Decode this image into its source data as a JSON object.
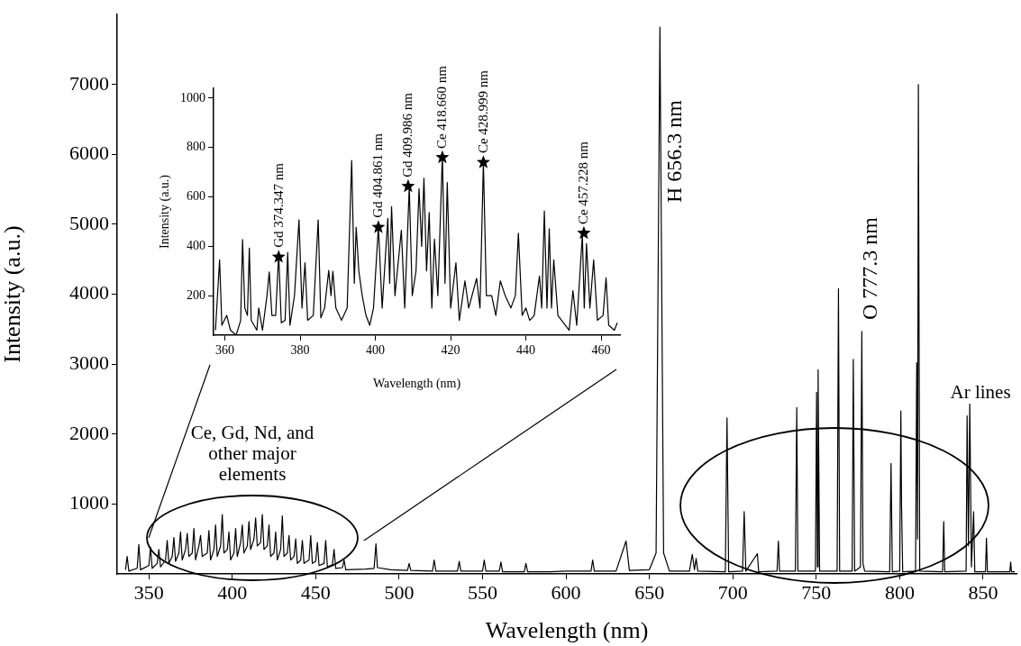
{
  "chart_data": [
    {
      "type": "line",
      "xlabel": "Wavelength (nm)",
      "ylabel": "Intensity (a.u.)",
      "color": "#000000",
      "xlim": [
        331,
        870
      ],
      "xticks": [
        350,
        400,
        450,
        500,
        550,
        600,
        650,
        700,
        750,
        800,
        850
      ],
      "ylim": [
        0,
        8000
      ],
      "yticks": [
        1000,
        2000,
        3000,
        4000,
        5000,
        6000,
        7000
      ],
      "x": [
        336,
        337,
        338,
        343,
        344,
        345,
        350,
        351,
        352,
        355,
        356,
        357,
        360,
        361,
        362,
        364,
        365,
        366,
        368,
        369,
        370,
        372,
        373,
        374,
        376,
        377,
        378,
        380,
        381,
        382,
        385,
        386,
        387,
        389,
        390,
        391,
        393,
        394,
        395,
        397,
        398,
        399,
        401,
        402,
        403,
        405,
        406,
        407,
        409,
        410,
        411,
        413,
        414,
        415,
        417,
        418,
        419,
        421,
        422,
        423,
        425,
        426,
        427,
        429,
        430,
        431,
        433,
        434,
        435,
        437,
        438,
        439,
        441,
        442,
        443,
        446,
        447,
        448,
        450,
        451,
        452,
        455,
        456,
        457,
        460,
        461,
        462,
        466,
        467,
        468,
        480,
        485,
        486.1,
        487,
        495,
        505,
        506,
        507,
        520,
        521,
        522,
        535,
        536,
        537,
        550,
        551,
        552,
        560,
        561,
        562,
        575,
        576,
        577,
        590,
        600,
        615,
        616,
        617,
        630,
        636,
        638,
        650,
        654,
        656.3,
        658.5,
        662,
        674,
        675.7,
        677,
        678,
        679,
        695.5,
        696.5,
        697.5,
        705.8,
        706.8,
        707.8,
        714.7,
        715.5,
        726.5,
        727.3,
        728,
        737.5,
        738.3,
        739,
        749.5,
        750.2,
        750.7,
        751.1,
        752,
        762.5,
        763.3,
        764,
        771.5,
        772.2,
        773,
        776.5,
        777.3,
        778,
        779,
        794,
        794.8,
        795.6,
        800,
        800.7,
        801.1,
        801.8,
        809.5,
        810.2,
        810.7,
        811.2,
        812,
        825.7,
        826.4,
        827,
        839.8,
        840.4,
        841.2,
        842,
        843,
        844.3,
        845,
        851.4,
        852,
        852.6,
        866,
        866.5,
        867,
        869
      ],
      "values": [
        60,
        250,
        40,
        80,
        420,
        60,
        120,
        380,
        80,
        150,
        350,
        100,
        200,
        480,
        150,
        250,
        520,
        180,
        300,
        600,
        200,
        350,
        580,
        250,
        300,
        650,
        200,
        400,
        550,
        250,
        300,
        620,
        200,
        350,
        700,
        250,
        400,
        850,
        300,
        350,
        600,
        200,
        300,
        650,
        250,
        450,
        700,
        300,
        400,
        750,
        350,
        500,
        800,
        400,
        450,
        850,
        350,
        400,
        700,
        250,
        300,
        600,
        200,
        350,
        830,
        250,
        300,
        550,
        200,
        250,
        500,
        150,
        200,
        480,
        150,
        200,
        550,
        150,
        180,
        450,
        120,
        150,
        480,
        100,
        130,
        350,
        80,
        90,
        200,
        60,
        70,
        80,
        430,
        90,
        60,
        50,
        150,
        50,
        40,
        200,
        40,
        40,
        180,
        40,
        40,
        200,
        40,
        40,
        170,
        30,
        30,
        150,
        30,
        30,
        40,
        40,
        200,
        40,
        40,
        470,
        50,
        60,
        300,
        7820,
        300,
        40,
        40,
        280,
        60,
        220,
        40,
        30,
        2230,
        30,
        40,
        890,
        40,
        290,
        30,
        40,
        470,
        40,
        40,
        2380,
        40,
        40,
        2600,
        100,
        2920,
        40,
        40,
        4080,
        40,
        40,
        3070,
        40,
        100,
        3470,
        150,
        40,
        30,
        1580,
        30,
        40,
        2330,
        1000,
        30,
        40,
        3020,
        500,
        7000,
        40,
        30,
        750,
        30,
        40,
        2260,
        400,
        2430,
        100,
        890,
        30,
        30,
        510,
        30,
        30,
        170,
        30,
        30
      ],
      "annotations": [
        "H 656.3 nm",
        "O 777.3 nm",
        "Ar lines",
        "Ce, Gd, Nd, and other major elements"
      ]
    },
    {
      "type": "line",
      "xlabel": "Wavelength (nm)",
      "ylabel": "Intensity (a.u.)",
      "xlim": [
        357,
        465
      ],
      "xticks": [
        360,
        380,
        400,
        420,
        440,
        460
      ],
      "ylim": [
        40,
        1040
      ],
      "yticks": [
        200,
        400,
        600,
        800,
        1000
      ],
      "series": [
        {
          "color": "#000000",
          "x": [
            357.5,
            358.6,
            359.2,
            360.5,
            361.5,
            363,
            364.2,
            364.7,
            365.3,
            366,
            366.5,
            367,
            368.5,
            369,
            370,
            371.2,
            371.8,
            372.5,
            373.5,
            374.3,
            375,
            376,
            376.7,
            377.3,
            378.5,
            379.7,
            380.5,
            381.3,
            382,
            383.5,
            384.8,
            385.5,
            386.5,
            387.6,
            388.2,
            388.7,
            389.5,
            391,
            392.5,
            393.7,
            394.4,
            394.9,
            395.6,
            396.5,
            397.5,
            398.5,
            399.5,
            400.8,
            401.8,
            403.3,
            403.8,
            404.3,
            405.2,
            406.9,
            407.8,
            409,
            409.8,
            410.8,
            411.6,
            412.3,
            412.9,
            413.6,
            414.3,
            415,
            415.7,
            416.6,
            417.8,
            418.5,
            419.1,
            420,
            421.4,
            422.3,
            423.8,
            424.8,
            426.9,
            427.8,
            428.7,
            429.5,
            430.9,
            432,
            433.2,
            434.5,
            436,
            437.2,
            438,
            439,
            440,
            441,
            442.2,
            443.6,
            444.2,
            444.9,
            445.6,
            446.2,
            446.8,
            447.4,
            448.5,
            449.5,
            451.5,
            452.5,
            453.5,
            455,
            455.5,
            456.1,
            457,
            458,
            459,
            460.5,
            461.3,
            462,
            463.5,
            464.3
          ],
          "values": [
            60,
            345,
            80,
            120,
            60,
            40,
            100,
            427,
            150,
            120,
            393,
            100,
            60,
            150,
            60,
            200,
            296,
            120,
            120,
            370,
            90,
            100,
            375,
            80,
            200,
            507,
            150,
            333,
            100,
            120,
            507,
            110,
            150,
            302,
            200,
            299,
            150,
            100,
            150,
            748,
            250,
            477,
            300,
            200,
            120,
            80,
            150,
            480,
            150,
            513,
            250,
            561,
            200,
            465,
            150,
            640,
            200,
            300,
            634,
            400,
            676,
            300,
            537,
            150,
            429,
            200,
            766,
            250,
            658,
            150,
            333,
            100,
            260,
            150,
            270,
            150,
            742,
            200,
            200,
            120,
            260,
            200,
            150,
            200,
            453,
            120,
            150,
            100,
            120,
            280,
            150,
            543,
            150,
            471,
            150,
            345,
            120,
            100,
            60,
            220,
            80,
            447,
            150,
            411,
            150,
            345,
            100,
            120,
            272,
            80,
            60,
            90
          ]
        },
        {
          "type": "scatter",
          "marker": "star",
          "color": "#000000",
          "x": [
            374.3,
            400.8,
            408.7,
            417.8,
            428.7,
            455.4
          ],
          "values": [
            357,
            477,
            643,
            760,
            740,
            453
          ]
        }
      ],
      "annotations": [
        {
          "text": "Gd 374.347 nm",
          "x": 374.3,
          "y": 357
        },
        {
          "text": "Gd 404.861 nm",
          "x": 400.8,
          "y": 477
        },
        {
          "text": "Gd 409.986 nm",
          "x": 408.7,
          "y": 643
        },
        {
          "text": "Ce 418.660 nm",
          "x": 417.8,
          "y": 760
        },
        {
          "text": "Ce 428.999 nm",
          "x": 428.7,
          "y": 740
        },
        {
          "text": "Ce 457.228 nm",
          "x": 455.4,
          "y": 453
        }
      ]
    }
  ]
}
